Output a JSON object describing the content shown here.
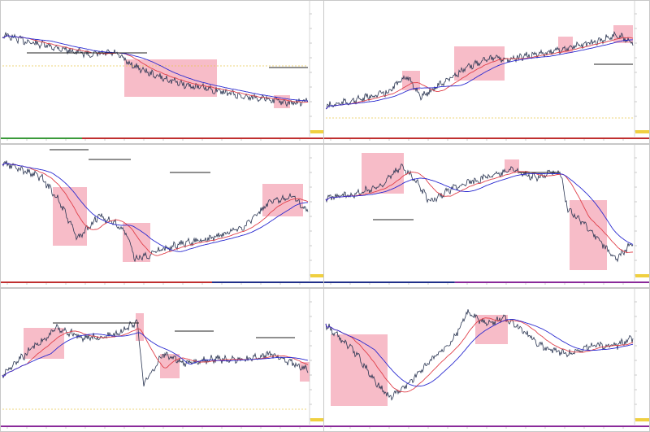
{
  "window": {
    "title": ""
  },
  "panels": [
    {
      "id": "p1",
      "title": "",
      "colors": {
        "price": "#2a3552",
        "ma_fast": "#e0404a",
        "ma_slow": "#2a2ad0"
      }
    },
    {
      "id": "p2",
      "title": "",
      "colors": {
        "price": "#2a3552",
        "ma_fast": "#e0404a",
        "ma_slow": "#2a2ad0"
      }
    },
    {
      "id": "p3",
      "title": "",
      "colors": {
        "price": "#2a3552",
        "ma_fast": "#e0404a",
        "ma_slow": "#2a2ad0"
      }
    },
    {
      "id": "p4",
      "title": "",
      "colors": {
        "price": "#2a3552",
        "ma_fast": "#e0404a",
        "ma_slow": "#2a2ad0"
      }
    },
    {
      "id": "p5",
      "title": "",
      "colors": {
        "price": "#2a3552",
        "ma_fast": "#e0404a",
        "ma_slow": "#2a2ad0"
      }
    },
    {
      "id": "p6",
      "title": "",
      "colors": {
        "price": "#2a3552",
        "ma_fast": "#e0404a",
        "ma_slow": "#2a2ad0"
      }
    }
  ],
  "colors": {
    "highlight": "#f4a5b5",
    "axis_strip_green": "#3a9a3a",
    "axis_strip_red": "#c03030",
    "axis_strip_navy": "#20308a",
    "axis_strip_purple": "#8a2a9a",
    "last_price": "#f0d040"
  }
}
